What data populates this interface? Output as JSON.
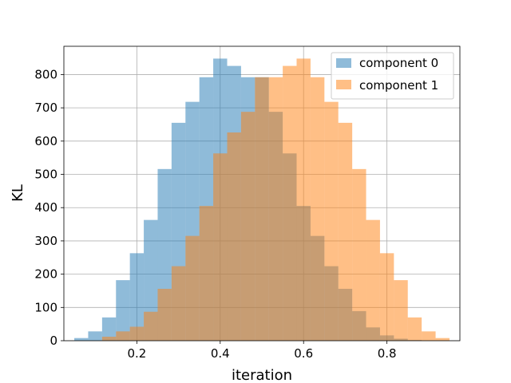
{
  "chart_data": {
    "type": "bar",
    "xlabel": "iteration",
    "ylabel": "KL",
    "xlim": [
      0.025,
      0.975
    ],
    "ylim": [
      0,
      885
    ],
    "x_ticks": [
      0.2,
      0.4,
      0.6,
      0.8
    ],
    "x_tick_labels": [
      "0.2",
      "0.4",
      "0.6",
      "0.8"
    ],
    "y_ticks": [
      0,
      100,
      200,
      300,
      400,
      500,
      600,
      700,
      800
    ],
    "y_tick_labels": [
      "0",
      "100",
      "200",
      "300",
      "400",
      "500",
      "600",
      "700",
      "800"
    ],
    "grid": true,
    "legend_position": "top-right",
    "series": [
      {
        "name": "component 0",
        "color": "#1f77b4",
        "opacity": 0.5,
        "bin_edges": [
          0.05,
          0.0833,
          0.1167,
          0.15,
          0.1833,
          0.2167,
          0.25,
          0.2833,
          0.3167,
          0.35,
          0.3833,
          0.4167,
          0.45,
          0.4833,
          0.5167,
          0.55,
          0.5833,
          0.6167,
          0.65,
          0.6833,
          0.7167,
          0.75,
          0.7833,
          0.8167,
          0.85,
          0.8833
        ],
        "values": [
          8,
          28,
          70,
          182,
          263,
          363,
          516,
          655,
          718,
          792,
          848,
          826,
          792,
          792,
          688,
          563,
          405,
          315,
          224,
          156,
          89,
          40,
          16,
          6,
          2
        ]
      },
      {
        "name": "component 1",
        "color": "#ff7f0e",
        "opacity": 0.5,
        "bin_edges": [
          0.1167,
          0.15,
          0.1833,
          0.2167,
          0.25,
          0.2833,
          0.3167,
          0.35,
          0.3833,
          0.4167,
          0.45,
          0.4833,
          0.5167,
          0.55,
          0.5833,
          0.6167,
          0.65,
          0.6833,
          0.7167,
          0.75,
          0.7833,
          0.8167,
          0.85,
          0.8833,
          0.9167,
          0.95
        ],
        "values": [
          12,
          28,
          42,
          87,
          156,
          224,
          315,
          405,
          563,
          626,
          688,
          792,
          792,
          826,
          848,
          792,
          718,
          655,
          516,
          363,
          263,
          182,
          70,
          28,
          8
        ]
      }
    ]
  }
}
